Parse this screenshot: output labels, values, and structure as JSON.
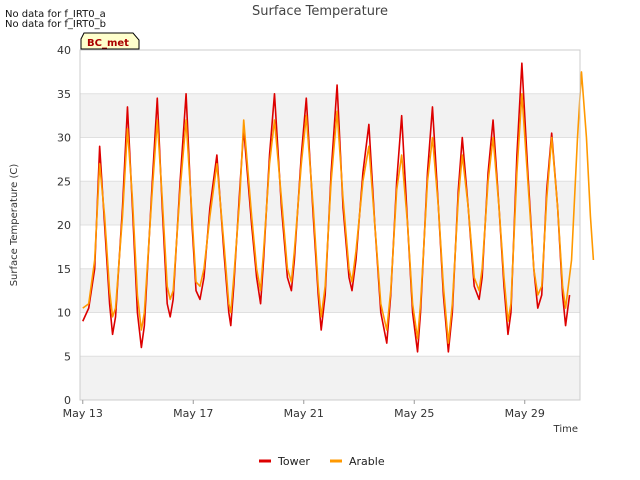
{
  "notes": [
    "No data for f_IRT0_a",
    "No data for f_IRT0_b"
  ],
  "badge": "BC_met",
  "chart_data": {
    "type": "line",
    "title": "Surface Temperature",
    "xlabel": "Time",
    "ylabel": "Surface Temperature (C)",
    "ylim": [
      0,
      40
    ],
    "yticks": [
      0,
      5,
      10,
      15,
      20,
      25,
      30,
      35,
      40
    ],
    "x_domain_days": [
      -0.1,
      18.0
    ],
    "xticks": [
      {
        "day": 0,
        "label": "May 13"
      },
      {
        "day": 4,
        "label": "May 17"
      },
      {
        "day": 8,
        "label": "May 21"
      },
      {
        "day": 12,
        "label": "May 25"
      },
      {
        "day": 16,
        "label": "May 29"
      }
    ],
    "grid": true,
    "alternating_bands": true,
    "legend_position": "bottom",
    "series": [
      {
        "name": "Tower",
        "color": "#dd0000",
        "points": [
          [
            0.0,
            9.0
          ],
          [
            0.3,
            10.5
          ],
          [
            0.6,
            15.0
          ],
          [
            0.85,
            29.0
          ],
          [
            1.1,
            20.0
          ],
          [
            1.35,
            11.0
          ],
          [
            1.5,
            7.5
          ],
          [
            1.65,
            9.5
          ],
          [
            2.0,
            22.0
          ],
          [
            2.25,
            33.5
          ],
          [
            2.5,
            22.0
          ],
          [
            2.75,
            10.0
          ],
          [
            2.95,
            6.0
          ],
          [
            3.1,
            8.5
          ],
          [
            3.5,
            25.0
          ],
          [
            3.75,
            34.5
          ],
          [
            4.0,
            22.0
          ],
          [
            4.25,
            11.0
          ],
          [
            4.4,
            9.5
          ],
          [
            4.55,
            11.5
          ],
          [
            4.9,
            25.0
          ],
          [
            5.2,
            35.0
          ],
          [
            5.5,
            20.0
          ],
          [
            5.7,
            12.5
          ],
          [
            5.9,
            11.5
          ],
          [
            6.1,
            14.0
          ],
          [
            6.4,
            22.0
          ],
          [
            6.75,
            28.0
          ],
          [
            7.1,
            17.0
          ],
          [
            7.35,
            10.0
          ],
          [
            7.45,
            8.5
          ],
          [
            7.6,
            13.0
          ],
          [
            7.9,
            24.0
          ],
          [
            8.1,
            31.0
          ],
          [
            8.5,
            20.0
          ],
          [
            8.75,
            14.0
          ],
          [
            8.95,
            11.0
          ],
          [
            9.1,
            16.0
          ],
          [
            9.4,
            28.0
          ],
          [
            9.65,
            35.0
          ],
          [
            10.0,
            22.0
          ],
          [
            10.3,
            14.0
          ],
          [
            10.5,
            12.5
          ],
          [
            10.65,
            16.0
          ],
          [
            11.0,
            28.0
          ],
          [
            11.25,
            34.5
          ],
          [
            11.6,
            21.0
          ],
          [
            11.85,
            12.0
          ],
          [
            12.0,
            8.0
          ],
          [
            12.2,
            12.0
          ],
          [
            12.5,
            26.0
          ],
          [
            12.8,
            36.0
          ],
          [
            13.1,
            22.0
          ],
          [
            13.4,
            14.0
          ],
          [
            13.55,
            12.5
          ],
          [
            13.75,
            16.0
          ],
          [
            14.1,
            26.0
          ],
          [
            14.4,
            31.5
          ],
          [
            14.7,
            20.0
          ],
          [
            15.0,
            10.0
          ],
          [
            15.3,
            6.5
          ],
          [
            15.5,
            12.0
          ],
          [
            15.8,
            25.0
          ],
          [
            16.05,
            32.5
          ],
          [
            16.35,
            20.0
          ],
          [
            16.6,
            10.0
          ],
          [
            16.85,
            5.5
          ],
          [
            17.0,
            10.0
          ],
          [
            17.35,
            26.0
          ],
          [
            17.6,
            33.5
          ],
          [
            17.9,
            22.0
          ],
          [
            18.15,
            12.0
          ],
          [
            18.4,
            5.5
          ],
          [
            18.6,
            10.0
          ],
          [
            18.9,
            24.0
          ],
          [
            19.1,
            30.0
          ],
          [
            19.4,
            22.0
          ],
          [
            19.7,
            13.0
          ],
          [
            19.95,
            11.5
          ],
          [
            20.1,
            14.0
          ],
          [
            20.4,
            26.0
          ],
          [
            20.65,
            32.0
          ],
          [
            20.95,
            22.0
          ],
          [
            21.2,
            13.0
          ],
          [
            21.4,
            7.5
          ],
          [
            21.55,
            10.0
          ],
          [
            21.85,
            28.0
          ],
          [
            22.1,
            38.5
          ],
          [
            22.4,
            26.0
          ],
          [
            22.7,
            15.0
          ],
          [
            22.9,
            10.5
          ],
          [
            23.1,
            12.0
          ],
          [
            23.35,
            24.0
          ],
          [
            23.6,
            30.5
          ],
          [
            23.9,
            22.0
          ],
          [
            24.15,
            12.0
          ],
          [
            24.3,
            8.5
          ],
          [
            24.5,
            12.0
          ]
        ]
      },
      {
        "name": "Arable",
        "color": "#ff9900",
        "points": [
          [
            0.0,
            10.5
          ],
          [
            0.3,
            11.0
          ],
          [
            0.6,
            16.0
          ],
          [
            0.85,
            27.0
          ],
          [
            1.1,
            21.0
          ],
          [
            1.35,
            12.5
          ],
          [
            1.5,
            9.5
          ],
          [
            1.65,
            10.5
          ],
          [
            2.0,
            21.0
          ],
          [
            2.25,
            31.0
          ],
          [
            2.5,
            23.0
          ],
          [
            2.75,
            12.0
          ],
          [
            2.95,
            8.0
          ],
          [
            3.1,
            10.0
          ],
          [
            3.5,
            24.0
          ],
          [
            3.75,
            32.0
          ],
          [
            4.0,
            23.0
          ],
          [
            4.25,
            13.0
          ],
          [
            4.4,
            11.5
          ],
          [
            4.55,
            12.5
          ],
          [
            4.9,
            24.0
          ],
          [
            5.2,
            32.0
          ],
          [
            5.5,
            21.0
          ],
          [
            5.7,
            13.5
          ],
          [
            5.9,
            13.0
          ],
          [
            6.1,
            15.0
          ],
          [
            6.4,
            21.0
          ],
          [
            6.75,
            27.0
          ],
          [
            7.1,
            18.0
          ],
          [
            7.35,
            11.0
          ],
          [
            7.45,
            10.0
          ],
          [
            7.6,
            14.0
          ],
          [
            7.9,
            23.0
          ],
          [
            8.1,
            32.0
          ],
          [
            8.5,
            21.0
          ],
          [
            8.75,
            15.0
          ],
          [
            8.95,
            12.5
          ],
          [
            9.1,
            17.0
          ],
          [
            9.4,
            27.0
          ],
          [
            9.65,
            32.0
          ],
          [
            10.0,
            23.0
          ],
          [
            10.3,
            15.0
          ],
          [
            10.5,
            13.5
          ],
          [
            10.65,
            17.0
          ],
          [
            11.0,
            27.0
          ],
          [
            11.25,
            32.5
          ],
          [
            11.6,
            22.0
          ],
          [
            11.85,
            13.0
          ],
          [
            12.0,
            9.5
          ],
          [
            12.2,
            13.0
          ],
          [
            12.5,
            25.0
          ],
          [
            12.8,
            33.0
          ],
          [
            13.1,
            23.0
          ],
          [
            13.4,
            15.0
          ],
          [
            13.55,
            13.5
          ],
          [
            13.75,
            17.0
          ],
          [
            14.1,
            25.0
          ],
          [
            14.4,
            29.0
          ],
          [
            14.7,
            20.0
          ],
          [
            15.0,
            11.0
          ],
          [
            15.3,
            8.0
          ],
          [
            15.5,
            12.5
          ],
          [
            15.8,
            24.0
          ],
          [
            16.05,
            28.0
          ],
          [
            16.35,
            20.0
          ],
          [
            16.6,
            11.0
          ],
          [
            16.85,
            7.0
          ],
          [
            17.0,
            11.0
          ],
          [
            17.35,
            25.0
          ],
          [
            17.6,
            30.0
          ],
          [
            17.9,
            22.0
          ],
          [
            18.15,
            13.0
          ],
          [
            18.4,
            6.5
          ],
          [
            18.6,
            11.0
          ],
          [
            18.9,
            23.0
          ],
          [
            19.1,
            28.0
          ],
          [
            19.4,
            22.0
          ],
          [
            19.7,
            14.0
          ],
          [
            19.95,
            12.5
          ],
          [
            20.1,
            15.0
          ],
          [
            20.4,
            25.0
          ],
          [
            20.65,
            30.0
          ],
          [
            20.95,
            22.0
          ],
          [
            21.2,
            14.0
          ],
          [
            21.4,
            9.0
          ],
          [
            21.55,
            11.0
          ],
          [
            21.85,
            26.0
          ],
          [
            22.1,
            35.0
          ],
          [
            22.4,
            25.0
          ],
          [
            22.7,
            15.0
          ],
          [
            22.9,
            12.0
          ],
          [
            23.1,
            13.0
          ],
          [
            23.35,
            23.0
          ],
          [
            23.6,
            30.0
          ],
          [
            23.9,
            22.0
          ],
          [
            24.15,
            13.0
          ],
          [
            24.3,
            10.5
          ],
          [
            24.6,
            16.0
          ],
          [
            24.9,
            30.0
          ],
          [
            25.1,
            37.5
          ],
          [
            25.35,
            30.0
          ],
          [
            25.55,
            21.0
          ],
          [
            25.7,
            16.0
          ]
        ]
      }
    ]
  }
}
